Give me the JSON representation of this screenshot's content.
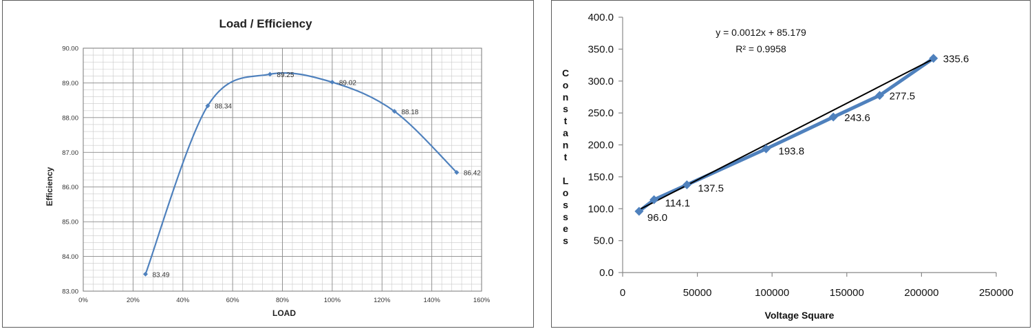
{
  "chart_data": [
    {
      "type": "line",
      "title": "Load / Efficiency",
      "xlabel": "LOAD",
      "ylabel": "Efficiency",
      "xlim": [
        0,
        160
      ],
      "ylim": [
        83,
        90
      ],
      "x_ticks": [
        "0%",
        "20%",
        "40%",
        "60%",
        "80%",
        "100%",
        "120%",
        "140%",
        "160%"
      ],
      "y_ticks": [
        "83.00",
        "84.00",
        "85.00",
        "86.00",
        "87.00",
        "88.00",
        "89.00",
        "90.00"
      ],
      "grid": true,
      "series": [
        {
          "x": [
            25,
            50,
            75,
            100,
            125,
            150
          ],
          "values": [
            83.49,
            88.34,
            89.25,
            89.02,
            88.18,
            86.42
          ],
          "labels": [
            "83.49",
            "88.34",
            "89.25",
            "89.02",
            "88.18",
            "86.42"
          ],
          "color": "#4f81bd"
        }
      ]
    },
    {
      "type": "line",
      "title": "",
      "xlabel": "Voltage Square",
      "ylabel": "Constant Losses",
      "xlim": [
        0,
        250000
      ],
      "ylim": [
        0,
        400
      ],
      "x_ticks": [
        "0",
        "50000",
        "100000",
        "150000",
        "200000",
        "250000"
      ],
      "y_ticks": [
        "0.0",
        "50.0",
        "100.0",
        "150.0",
        "200.0",
        "250.0",
        "300.0",
        "350.0",
        "400.0"
      ],
      "grid": false,
      "series": [
        {
          "x": [
            11000,
            21000,
            43000,
            96000,
            141000,
            172000,
            208000
          ],
          "values": [
            96.0,
            114.1,
            137.5,
            193.8,
            243.6,
            277.5,
            335.6
          ],
          "labels": [
            "96.0",
            "114.1",
            "137.5",
            "193.8",
            "243.6",
            "277.5",
            "335.6"
          ],
          "color": "#4f81bd"
        }
      ],
      "trendline": {
        "slope": 0.0012,
        "intercept": 85.179,
        "x_range": [
          11000,
          208000
        ],
        "equation": "y = 0.0012x + 85.179",
        "r2": "R² = 0.9958",
        "color": "#000000"
      }
    }
  ]
}
